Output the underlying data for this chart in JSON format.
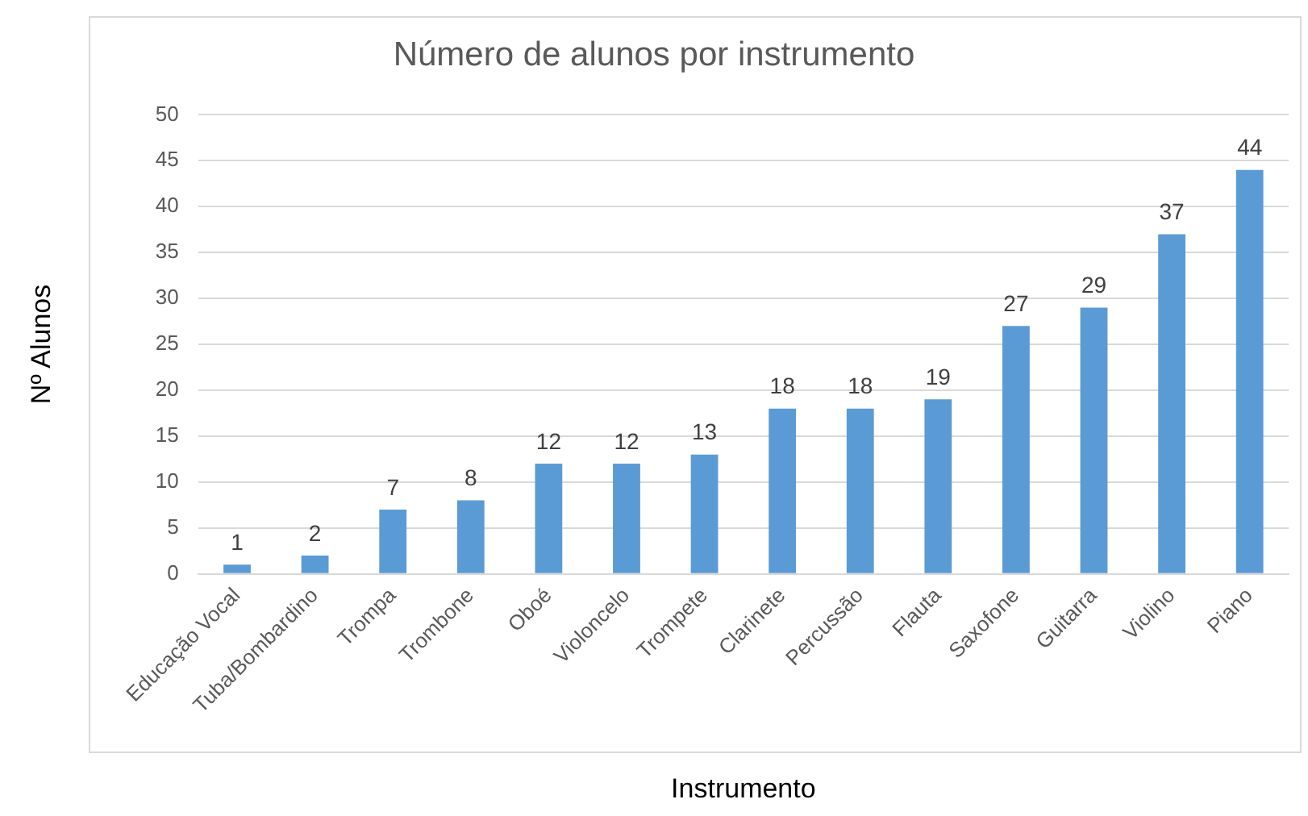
{
  "chart_data": {
    "type": "bar",
    "title": "Número de alunos por instrumento",
    "xlabel": "Instrumento",
    "ylabel": "Nº Alunos",
    "categories": [
      "Educação Vocal",
      "Tuba/Bombardino",
      "Trompa",
      "Trombone",
      "Oboé",
      "Violoncelo",
      "Trompete",
      "Clarinete",
      "Percussão",
      "Flauta",
      "Saxofone",
      "Guitarra",
      "Violino",
      "Piano"
    ],
    "values": [
      1,
      2,
      7,
      8,
      12,
      12,
      13,
      18,
      18,
      19,
      27,
      29,
      37,
      44
    ],
    "color": "#5b9bd5",
    "ylim": [
      0,
      50
    ],
    "yticks": [
      0,
      5,
      10,
      15,
      20,
      25,
      30,
      35,
      40,
      45,
      50
    ],
    "grid": "y",
    "data_labels": true,
    "legend": false
  }
}
